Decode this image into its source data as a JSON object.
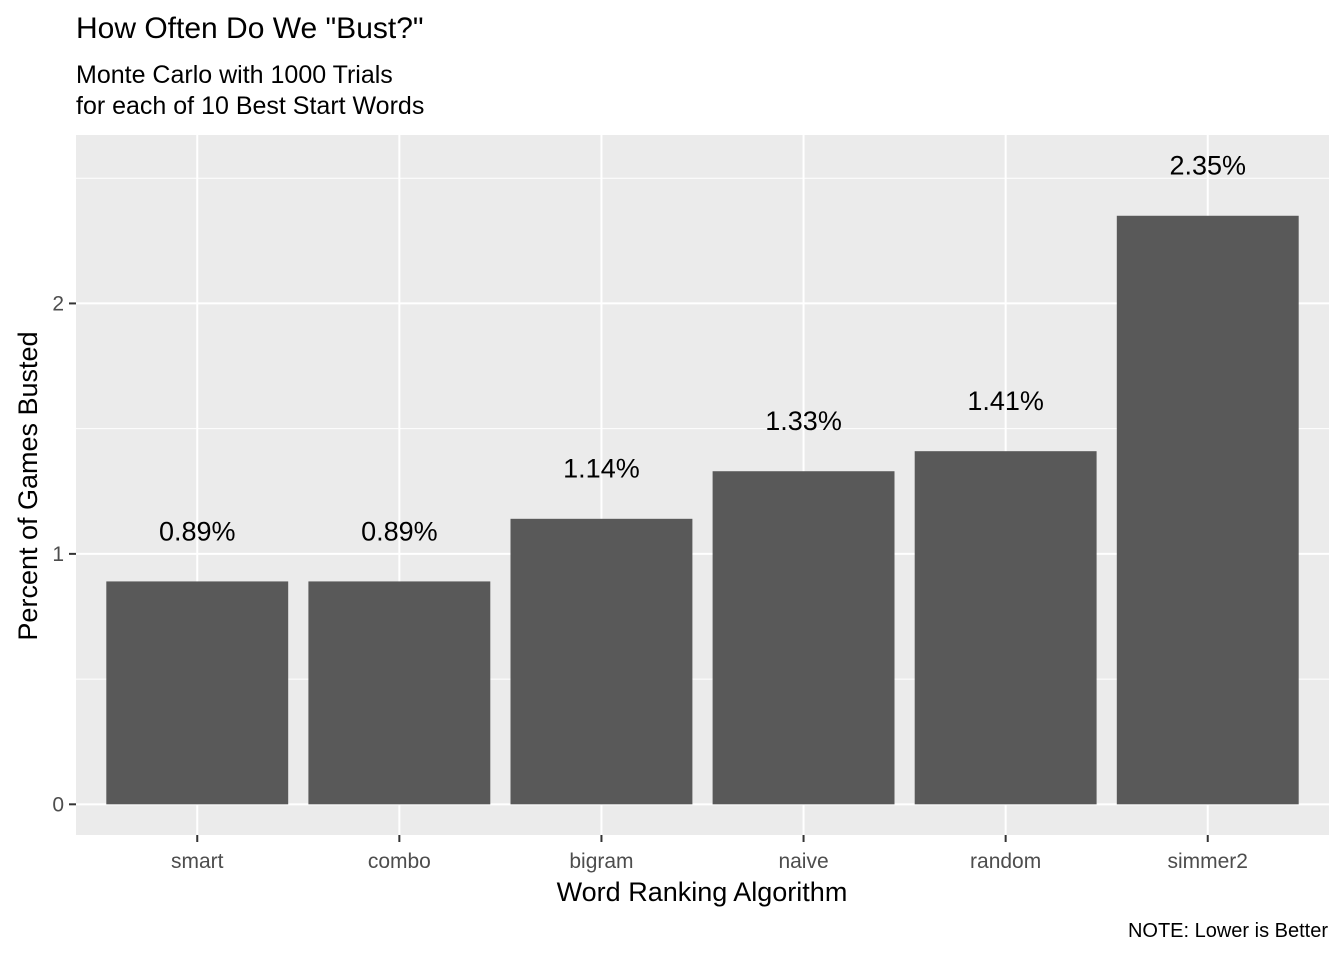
{
  "chart_data": {
    "type": "bar",
    "title": "How Often Do We \"Bust?\"",
    "subtitle": [
      "Monte Carlo with 1000 Trials",
      "for each of 10 Best Start Words"
    ],
    "categories": [
      "smart",
      "combo",
      "bigram",
      "naive",
      "random",
      "simmer2"
    ],
    "values": [
      0.89,
      0.89,
      1.14,
      1.33,
      1.41,
      2.35
    ],
    "data_labels": [
      "0.89%",
      "0.89%",
      "1.14%",
      "1.33%",
      "1.41%",
      "2.35%"
    ],
    "xlabel": "Word Ranking Algorithm",
    "ylabel": "Percent of Games Busted",
    "ylim": [
      -0.1225,
      2.6725
    ],
    "yticks": [
      0,
      1,
      2
    ],
    "yticklabels": [
      "0",
      "1",
      "2"
    ],
    "caption": "NOTE: Lower is Better",
    "grid": true,
    "legend": "none",
    "colors": {
      "bar": "#595959",
      "panel": "#EBEBEB",
      "grid": "#FFFFFF",
      "axis_text": "#4D4D4D",
      "tick": "#333333"
    }
  }
}
